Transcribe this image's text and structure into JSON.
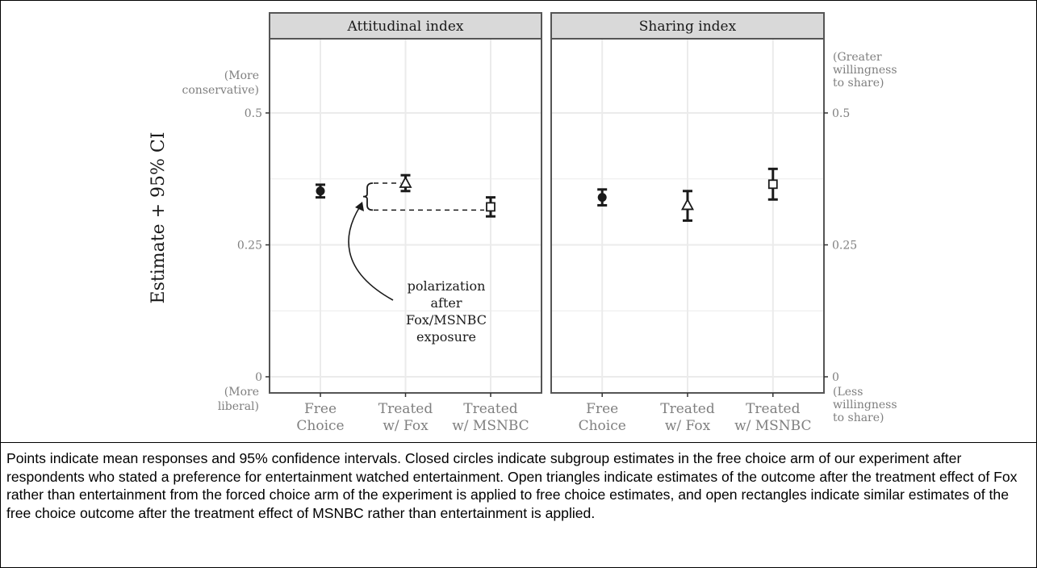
{
  "chart_data": {
    "type": "scatter",
    "ylabel": "Estimate + 95% CI",
    "ylim": [
      0,
      0.5
    ],
    "yticks": [
      0,
      0.25,
      0.5
    ],
    "ytick_labels": [
      "0",
      "0.25",
      "0.5"
    ],
    "grid": true,
    "categories": [
      "Free\nChoice",
      "Treated\nw/ Fox",
      "Treated\nw/ MSNBC"
    ],
    "marker_colors": {
      "ink": "#1a1a1a",
      "strip": "#d9d9d9",
      "frame": "#555555",
      "grid": "#ebebeb",
      "muted": "#7f7f7f"
    },
    "panels": [
      {
        "title": "Attitudinal index",
        "axis_top_note": "(More\nconservative)",
        "axis_bottom_note": "(More\nliberal)",
        "points": [
          {
            "category": "Free\nChoice",
            "marker": "filled-circle",
            "y": 0.352,
            "lo": 0.34,
            "hi": 0.364
          },
          {
            "category": "Treated\nw/ Fox",
            "marker": "open-triangle",
            "y": 0.367,
            "lo": 0.352,
            "hi": 0.382
          },
          {
            "category": "Treated\nw/ MSNBC",
            "marker": "open-square",
            "y": 0.322,
            "lo": 0.304,
            "hi": 0.34
          }
        ],
        "annotation": {
          "text": "polarization\nafter\nFox/MSNBC\nexposure",
          "from_y": 0.367,
          "to_y": 0.316
        }
      },
      {
        "title": "Sharing index",
        "axis_top_note": "(Greater\nwillingness\nto share)",
        "axis_bottom_note": "(Less\nwillingness\nto share)",
        "points": [
          {
            "category": "Free\nChoice",
            "marker": "filled-circle",
            "y": 0.34,
            "lo": 0.325,
            "hi": 0.355
          },
          {
            "category": "Treated\nw/ Fox",
            "marker": "open-triangle",
            "y": 0.325,
            "lo": 0.296,
            "hi": 0.352
          },
          {
            "category": "Treated\nw/ MSNBC",
            "marker": "open-square",
            "y": 0.365,
            "lo": 0.336,
            "hi": 0.394
          }
        ]
      }
    ]
  },
  "caption": "Points indicate mean responses and 95% confidence intervals. Closed circles indicate subgroup estimates in the free choice arm of our experiment after respondents who stated a preference for entertainment watched entertainment. Open triangles indicate estimates of the outcome after the treatment effect of Fox rather than entertainment from the forced choice arm of the experiment is applied to free choice estimates, and open rectangles indicate similar estimates of the free choice outcome after the treatment effect of MSNBC rather than entertainment is applied."
}
